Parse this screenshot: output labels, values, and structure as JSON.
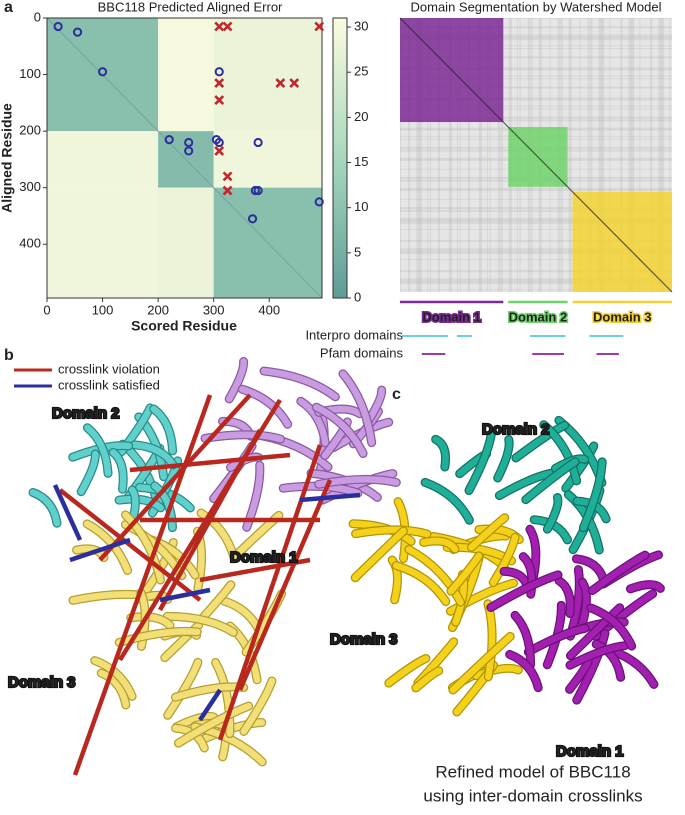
{
  "panel_a": {
    "label": "a",
    "heatmap": {
      "type": "heatmap",
      "title": "BBC118 Predicted Aligned Error",
      "x_label": "Scored Residue",
      "y_label": "Aligned Residue",
      "xlim": [
        0,
        495
      ],
      "ylim": [
        0,
        495
      ],
      "xticks": [
        0,
        100,
        200,
        300,
        400
      ],
      "yticks": [
        0,
        100,
        200,
        300,
        400
      ],
      "colorbar_lim": [
        0,
        31
      ],
      "colorbar_ticks": [
        0,
        5,
        10,
        15,
        20,
        25,
        30
      ],
      "blocks": [
        {
          "x": [
            0,
            200
          ],
          "y": [
            0,
            200
          ],
          "value": 9
        },
        {
          "x": [
            200,
            300
          ],
          "y": [
            0,
            200
          ],
          "value": 30
        },
        {
          "x": [
            300,
            495
          ],
          "y": [
            0,
            200
          ],
          "value": 28
        },
        {
          "x": [
            0,
            200
          ],
          "y": [
            200,
            300
          ],
          "value": 29
        },
        {
          "x": [
            200,
            300
          ],
          "y": [
            200,
            300
          ],
          "value": 8
        },
        {
          "x": [
            300,
            495
          ],
          "y": [
            200,
            300
          ],
          "value": 29
        },
        {
          "x": [
            0,
            200
          ],
          "y": [
            300,
            495
          ],
          "value": 29
        },
        {
          "x": [
            200,
            300
          ],
          "y": [
            300,
            495
          ],
          "value": 28
        },
        {
          "x": [
            300,
            495
          ],
          "y": [
            300,
            495
          ],
          "value": 9
        }
      ],
      "violations": {
        "color": "#c0272d",
        "x": [
          310,
          325,
          490,
          310,
          420,
          445,
          310,
          310,
          325,
          325
        ],
        "y": [
          15,
          15,
          15,
          115,
          115,
          115,
          145,
          235,
          280,
          305
        ]
      },
      "satisfied": {
        "color": "#2b2f9e",
        "x": [
          20,
          55,
          100,
          310,
          220,
          255,
          255,
          305,
          310,
          380,
          375,
          380,
          370,
          490
        ],
        "y": [
          15,
          25,
          95,
          95,
          215,
          220,
          235,
          215,
          220,
          220,
          305,
          305,
          355,
          325
        ]
      }
    },
    "segmentation": {
      "title": "Domain Segmentation by Watershed Model",
      "domains": [
        {
          "name": "Domain 1",
          "range": [
            0,
            188
          ],
          "color": "#7d2a96"
        },
        {
          "name": "Domain 2",
          "range": [
            197,
            305
          ],
          "color": "#6fd26b"
        },
        {
          "name": "Domain 3",
          "range": [
            314,
            495
          ],
          "color": "#f3d232"
        }
      ],
      "interpro": {
        "label": "Interpro domains",
        "color": "#6ccde0",
        "ranges": [
          [
            0,
            91
          ],
          [
            100,
            135
          ],
          [
            233,
            305
          ],
          [
            341,
            410
          ]
        ]
      },
      "pfam": {
        "label": "Pfam domains",
        "color": "#9b3aa8",
        "ranges": [
          [
            36,
            86
          ],
          [
            237,
            302
          ],
          [
            354,
            402
          ]
        ]
      }
    }
  },
  "panel_b": {
    "label": "b",
    "legend": [
      {
        "name": "crosslink violation",
        "color": "#b8281f"
      },
      {
        "name": "crosslink satisfied",
        "color": "#2b2f9e"
      }
    ],
    "labels": [
      "Domain 2",
      "Domain 1",
      "Domain 3"
    ]
  },
  "panel_c": {
    "label": "c",
    "labels": [
      "Domain 2",
      "Domain 3",
      "Domain 1"
    ],
    "caption": [
      "Refined model of BBC118",
      "using inter-domain crosslinks"
    ]
  }
}
